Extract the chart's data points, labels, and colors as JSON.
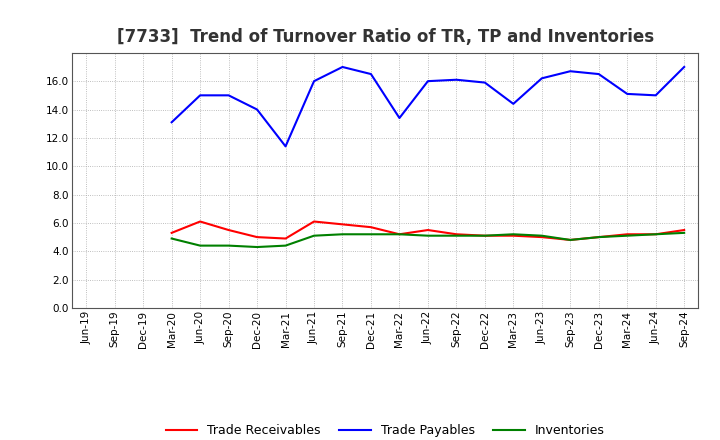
{
  "title": "[7733]  Trend of Turnover Ratio of TR, TP and Inventories",
  "x_labels": [
    "Jun-19",
    "Sep-19",
    "Dec-19",
    "Mar-20",
    "Jun-20",
    "Sep-20",
    "Dec-20",
    "Mar-21",
    "Jun-21",
    "Sep-21",
    "Dec-21",
    "Mar-22",
    "Jun-22",
    "Sep-22",
    "Dec-22",
    "Mar-23",
    "Jun-23",
    "Sep-23",
    "Dec-23",
    "Mar-24",
    "Jun-24",
    "Sep-24"
  ],
  "trade_receivables": [
    null,
    null,
    null,
    5.3,
    6.1,
    5.5,
    5.0,
    4.9,
    6.1,
    5.9,
    5.7,
    5.2,
    5.5,
    5.2,
    5.1,
    5.1,
    5.0,
    4.8,
    5.0,
    5.2,
    5.2,
    5.5
  ],
  "trade_payables": [
    null,
    null,
    null,
    13.1,
    15.0,
    15.0,
    14.0,
    11.4,
    16.0,
    17.0,
    16.5,
    13.4,
    16.0,
    16.1,
    15.9,
    14.4,
    16.2,
    16.7,
    16.5,
    15.1,
    15.0,
    17.0
  ],
  "inventories": [
    null,
    null,
    null,
    4.9,
    4.4,
    4.4,
    4.3,
    4.4,
    5.1,
    5.2,
    5.2,
    5.2,
    5.1,
    5.1,
    5.1,
    5.2,
    5.1,
    4.8,
    5.0,
    5.1,
    5.2,
    5.3
  ],
  "ylim": [
    0,
    18.0
  ],
  "yticks": [
    0.0,
    2.0,
    4.0,
    6.0,
    8.0,
    10.0,
    12.0,
    14.0,
    16.0
  ],
  "tr_color": "#ff0000",
  "tp_color": "#0000ff",
  "inv_color": "#008000",
  "tr_label": "Trade Receivables",
  "tp_label": "Trade Payables",
  "inv_label": "Inventories",
  "background_color": "#ffffff",
  "grid_color": "#aaaaaa",
  "title_fontsize": 12,
  "title_color": "#333333",
  "legend_fontsize": 9,
  "tick_fontsize": 7.5
}
